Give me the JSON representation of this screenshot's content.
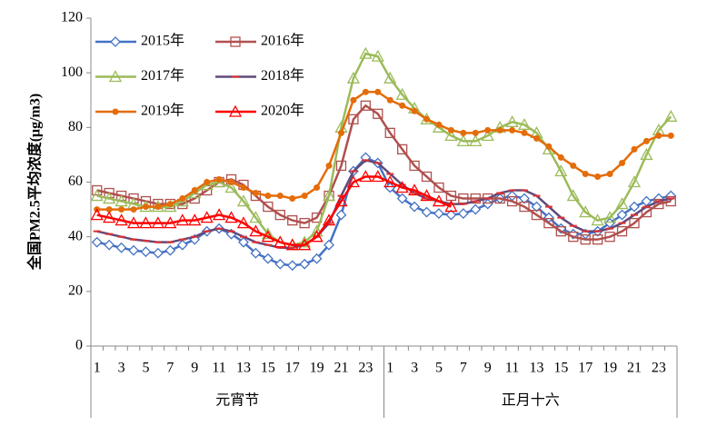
{
  "chart_data": {
    "type": "line",
    "ylabel": "全国PM2.5平均浓度(μg/m3)",
    "categories": [
      "1",
      null,
      "3",
      null,
      "5",
      null,
      "7",
      null,
      "9",
      null,
      "11",
      null,
      "13",
      null,
      "15",
      null,
      "17",
      null,
      "19",
      null,
      "21",
      null,
      "23",
      null,
      "1",
      null,
      "3",
      null,
      "5",
      null,
      "7",
      null,
      "9",
      null,
      "11",
      null,
      "13",
      null,
      "15",
      null,
      "17",
      null,
      "19",
      null,
      "21",
      null,
      "23",
      null
    ],
    "groups": [
      "元宵节",
      "正月十六"
    ],
    "ylim": [
      0,
      120
    ],
    "yticks": [
      0,
      20,
      40,
      60,
      80,
      100,
      120
    ],
    "grid": false,
    "legend": "upper left",
    "series": [
      {
        "name": "2015年",
        "color": "#4472c4",
        "marker": "diamond",
        "values": [
          38,
          37,
          36,
          35,
          34.5,
          34,
          35,
          37,
          39,
          42,
          43,
          41,
          38,
          34,
          32,
          30,
          29.5,
          30,
          32,
          37,
          48,
          64,
          69,
          67,
          58,
          54,
          51,
          49,
          48.5,
          48,
          48.5,
          50,
          52,
          54,
          55,
          54,
          51,
          47,
          43,
          41,
          41,
          42,
          45,
          48,
          51,
          53,
          54,
          55
        ]
      },
      {
        "name": "2016年",
        "color": "#b0504e",
        "marker": "square",
        "values": [
          57,
          56,
          55,
          54,
          53,
          52,
          52,
          52,
          54,
          57,
          60,
          61,
          59,
          55,
          51,
          48,
          46,
          45,
          47,
          55,
          66,
          83,
          88,
          85,
          78,
          72,
          66,
          62,
          58,
          55,
          54,
          54,
          54,
          54,
          53,
          51,
          48,
          45,
          42,
          40,
          39,
          39,
          40,
          42,
          45,
          49,
          52,
          53
        ]
      },
      {
        "name": "2017年",
        "color": "#9bbb59",
        "marker": "triangle",
        "values": [
          55,
          54,
          53,
          52,
          51,
          51,
          51,
          53,
          56,
          59,
          60,
          58,
          53,
          47,
          41,
          38,
          37,
          38,
          42,
          55,
          80,
          98,
          107,
          106,
          98,
          92,
          87,
          83,
          80,
          77,
          75,
          75,
          77,
          80,
          82,
          81,
          78,
          72,
          64,
          55,
          49,
          46,
          47,
          52,
          60,
          70,
          79,
          84
        ]
      },
      {
        "name": "2018年",
        "color": "#604a7b",
        "marker": "dash",
        "values": [
          42,
          41,
          40,
          39,
          38.5,
          38,
          38,
          39,
          40,
          42,
          43,
          42,
          40,
          38,
          37,
          36,
          36,
          37,
          40,
          45,
          55,
          64,
          68,
          67,
          63,
          59,
          56,
          54,
          53,
          52,
          52,
          53,
          54,
          56,
          57,
          57,
          55,
          51,
          47,
          44,
          42,
          42,
          43,
          45,
          48,
          51,
          53,
          54
        ]
      },
      {
        "name": "2019年",
        "color": "#e46c0a",
        "marker": "circle",
        "values": [
          50,
          50,
          50,
          50,
          51,
          51,
          52,
          54,
          57,
          60,
          61,
          60,
          58,
          56,
          55,
          55,
          54,
          55,
          58,
          66,
          78,
          90,
          93,
          93,
          90,
          88,
          86,
          83,
          81,
          79,
          78,
          78,
          79,
          79,
          79,
          78,
          76,
          73,
          69,
          66,
          63,
          62,
          63,
          67,
          72,
          75,
          77,
          77
        ]
      },
      {
        "name": "2020年",
        "color": "#ff0000",
        "marker": "triangle",
        "values": [
          48,
          47,
          46,
          45,
          45,
          45,
          45,
          46,
          46,
          47,
          48,
          47,
          45,
          42,
          40,
          38,
          37,
          37,
          40,
          46,
          53,
          60,
          62,
          62,
          60,
          58,
          57,
          55,
          53,
          51,
          null,
          null,
          null,
          null,
          null,
          null,
          null,
          null,
          null,
          null,
          null,
          null,
          null,
          null,
          null,
          null,
          null,
          null
        ]
      }
    ]
  }
}
